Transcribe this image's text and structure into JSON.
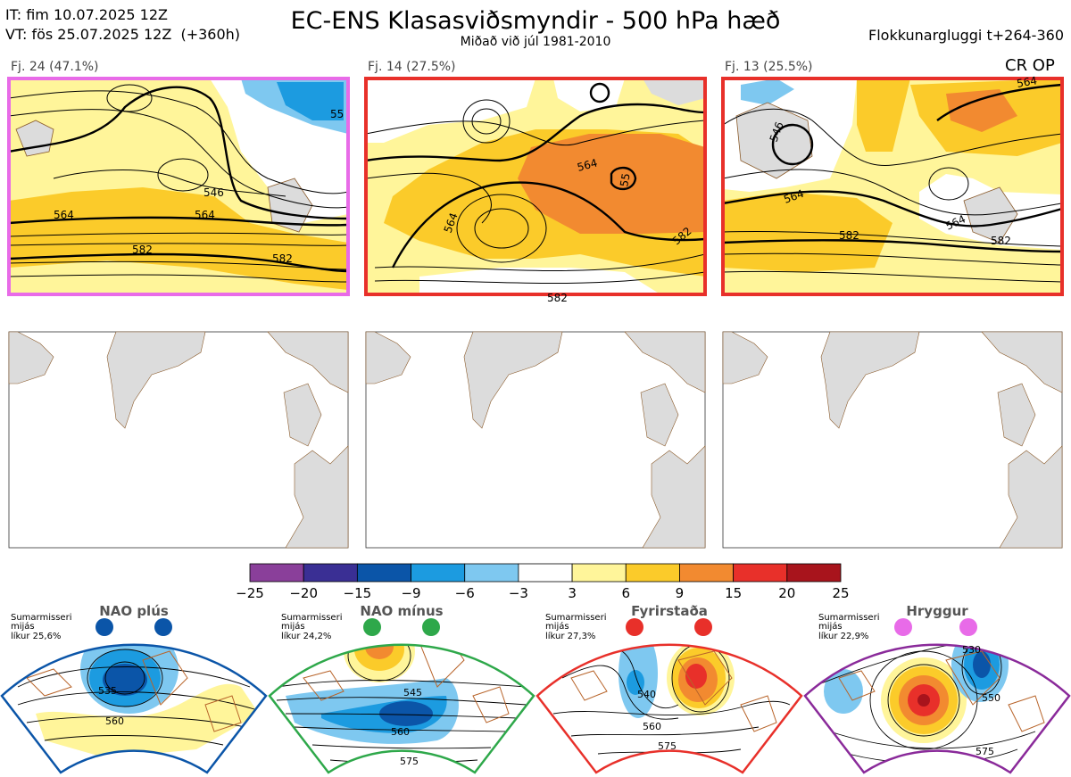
{
  "header": {
    "it_line": "IT: fim 10.07.2025 12Z",
    "vt_line": "VT: fös 25.07.2025 12Z  (+360h)",
    "title": "EC-ENS Klasasviðsmyndir - 500 hPa hæð",
    "subtitle": "Miðað við júl 1981-2010",
    "window": "Flokkunargluggi t+264-360"
  },
  "clusters": [
    {
      "label": "Fj. 24 (47.1%)",
      "border_color": "#e86be8",
      "contour_labels": [
        "546",
        "564",
        "582",
        "564",
        "582",
        "55"
      ]
    },
    {
      "label": "Fj. 14 (27.5%)",
      "border_color": "#e8302a",
      "contour_labels": [
        "564",
        "564",
        "582",
        "582",
        "55"
      ]
    },
    {
      "label": "Fj. 13 (25.5%)",
      "border_color": "#e8302a",
      "contour_labels": [
        "546",
        "564",
        "564",
        "582",
        "582",
        "564"
      ]
    }
  ],
  "op_label": "CR OP",
  "colorbar": {
    "ticks": [
      "−25",
      "−20",
      "−15",
      "−9",
      "−6",
      "−3",
      "3",
      "6",
      "9",
      "15",
      "20",
      "25"
    ],
    "colors": [
      "#8a3f9a",
      "#3a2f94",
      "#0b55a8",
      "#1c9be0",
      "#7ec8f0",
      "#ffffff",
      "#fff59a",
      "#fbcb2a",
      "#f28a30",
      "#e8302a",
      "#a8141c"
    ]
  },
  "regimes": [
    {
      "name": "NAO plús",
      "season": "Sumarmisseri",
      "freq_word": "mijás",
      "prob": "líkur 25,6%",
      "color": "#0b55a8",
      "labels": [
        "535",
        "560"
      ]
    },
    {
      "name": "NAO mínus",
      "season": "Sumarmisseri",
      "freq_word": "mijás",
      "prob": "líkur 24,2%",
      "color": "#2ea84a",
      "labels": [
        "545",
        "560",
        "575"
      ]
    },
    {
      "name": "Fyrirstaða",
      "season": "Sumarmisseri",
      "freq_word": "mijás",
      "prob": "líkur 27,3%",
      "color": "#e8302a",
      "labels": [
        "540",
        "560",
        "575"
      ]
    },
    {
      "name": "Hryggur",
      "season": "Sumarmisseri",
      "freq_word": "mijás",
      "prob": "líkur 22,9%",
      "color": "#8a2a9a",
      "labels": [
        "530",
        "550",
        "575"
      ]
    }
  ],
  "chart_data": {
    "type": "heatmap",
    "title": "EC-ENS Klasasviðsmyndir - 500 hPa hæð",
    "subtitle": "Miðað við júl 1981-2010",
    "legend_bins": [
      -25,
      -20,
      -15,
      -9,
      -6,
      -3,
      3,
      6,
      9,
      15,
      20,
      25
    ],
    "panels": [
      {
        "cluster": "Fj. 24",
        "probability_pct": 47.1,
        "contours": [
          546,
          564,
          582
        ]
      },
      {
        "cluster": "Fj. 14",
        "probability_pct": 27.5,
        "contours": [
          564,
          582
        ]
      },
      {
        "cluster": "Fj. 13",
        "probability_pct": 25.5,
        "contours": [
          546,
          564,
          582
        ]
      }
    ],
    "regimes": [
      {
        "name": "NAO plús",
        "probability_pct": 25.6
      },
      {
        "name": "NAO mínus",
        "probability_pct": 24.2
      },
      {
        "name": "Fyrirstaða",
        "probability_pct": 27.3
      },
      {
        "name": "Hryggur",
        "probability_pct": 22.9
      }
    ]
  }
}
